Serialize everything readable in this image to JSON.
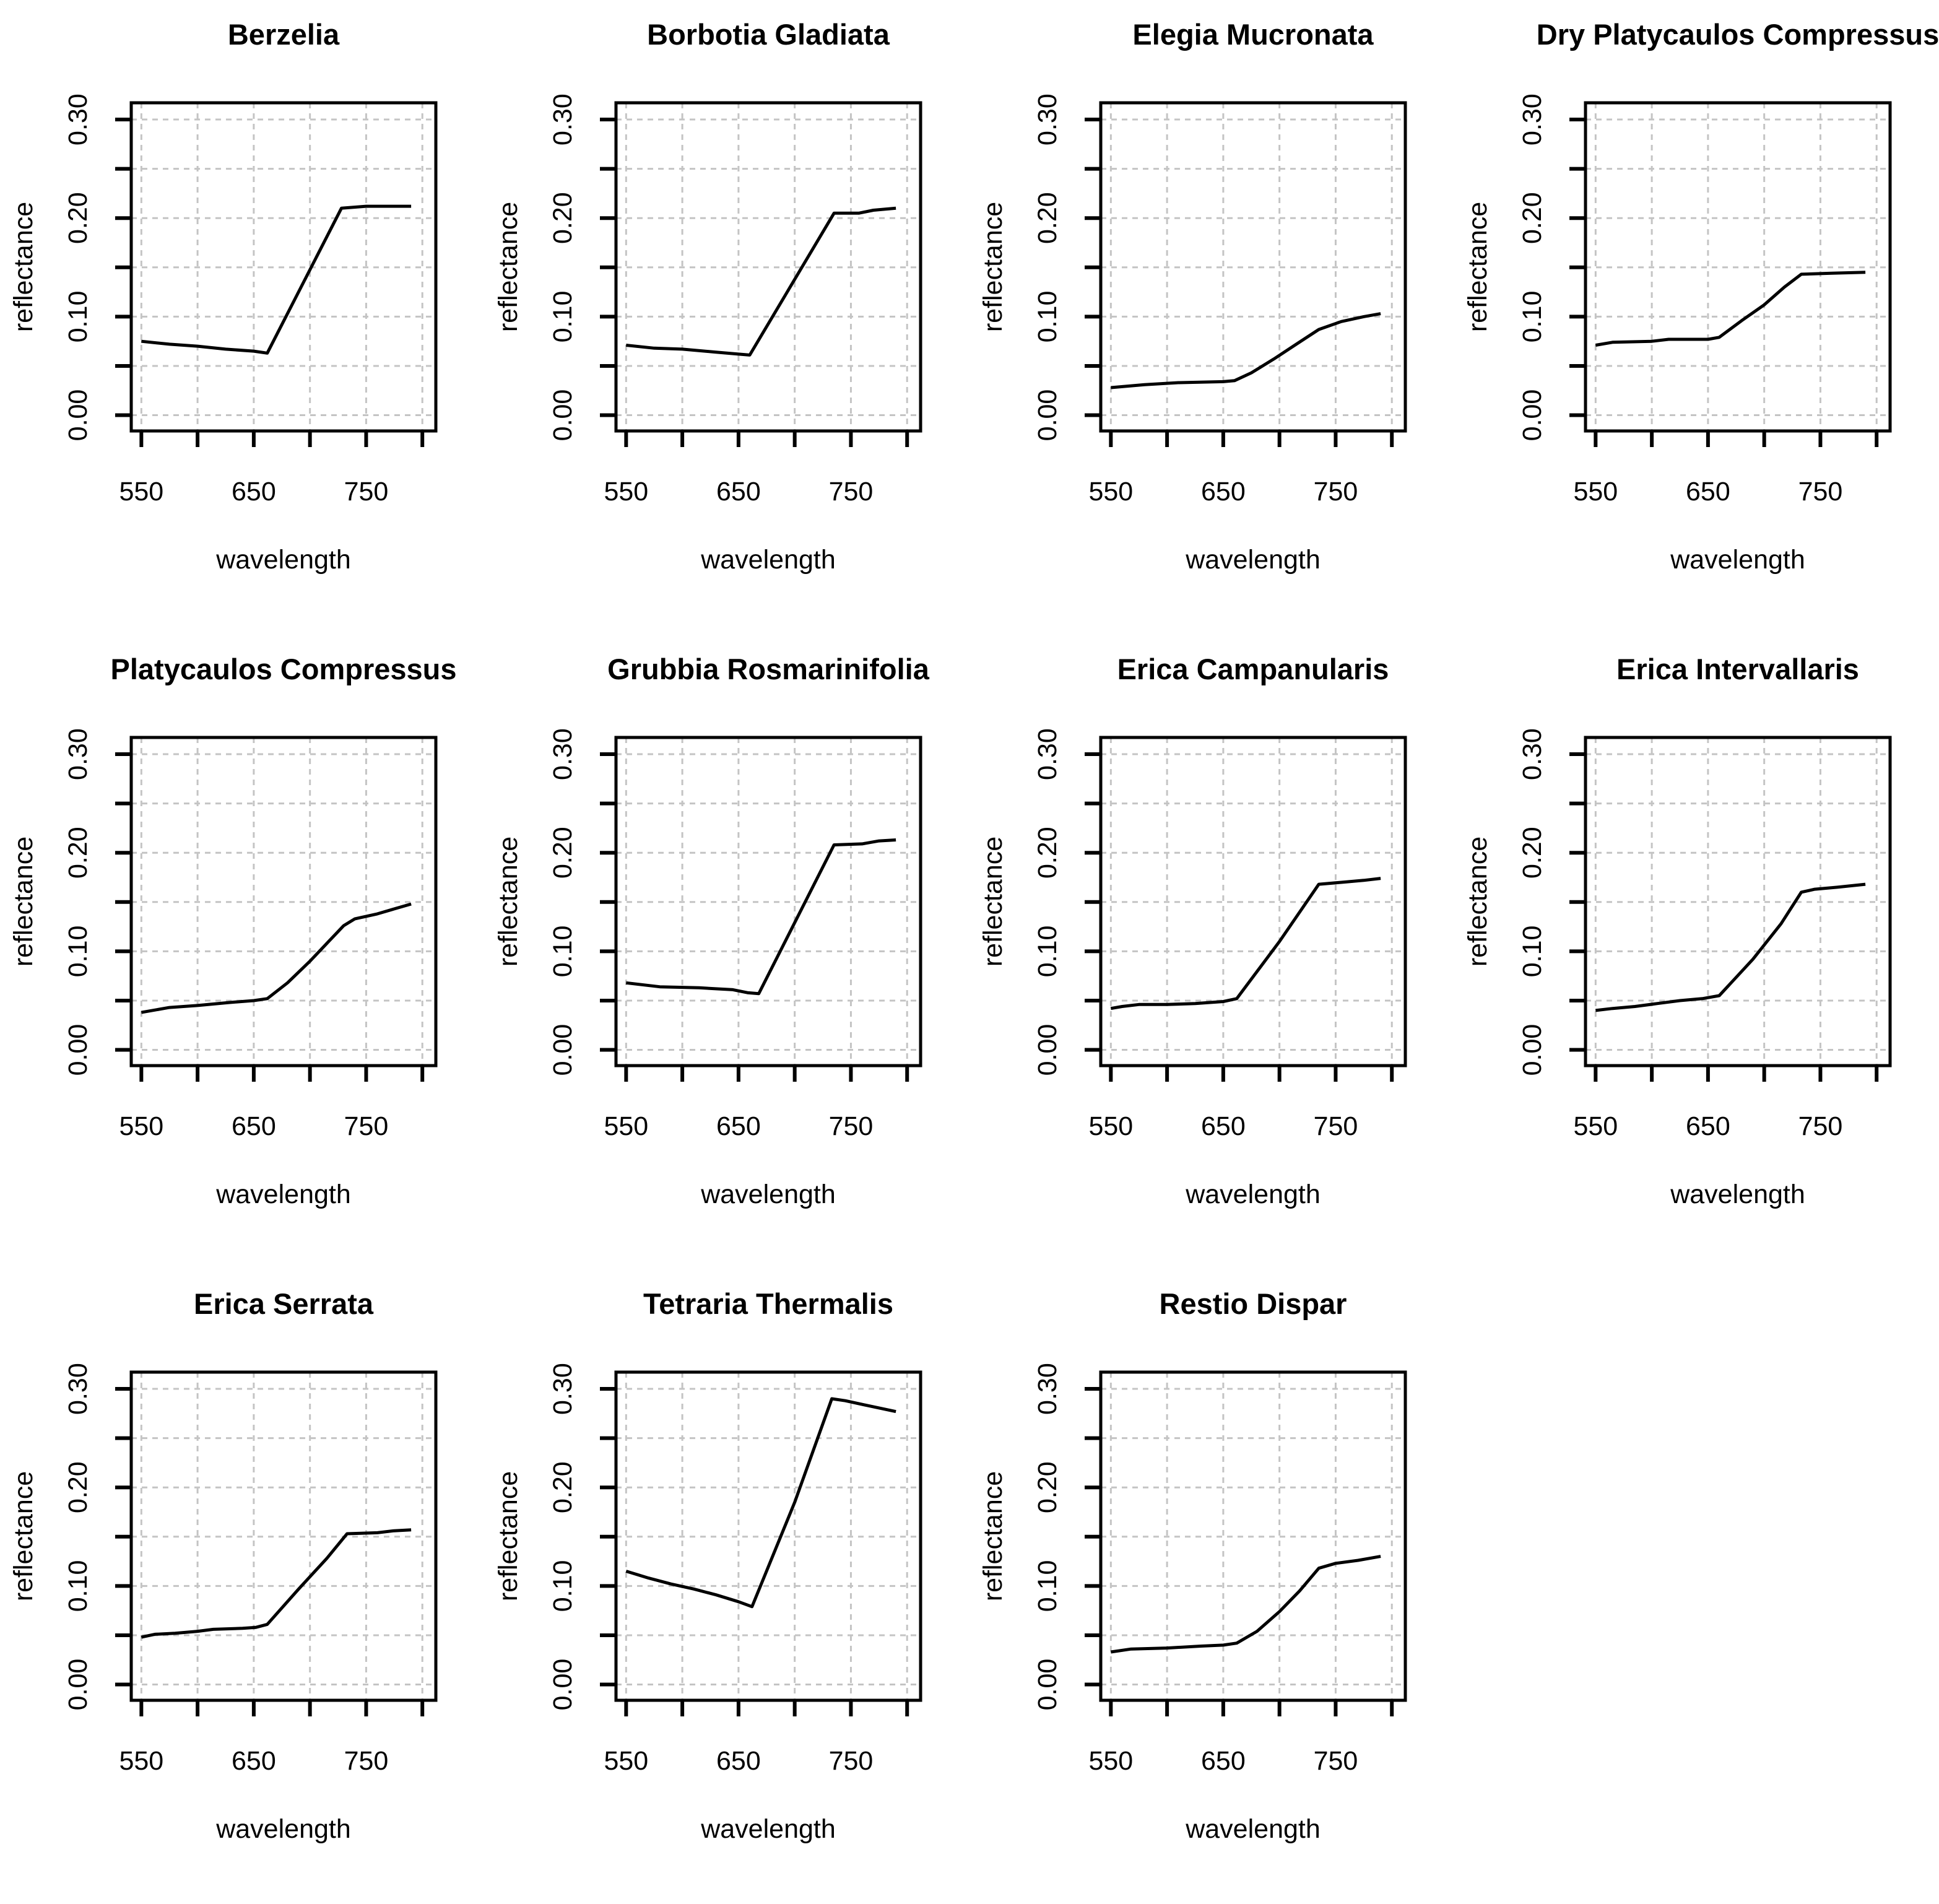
{
  "page": {
    "background": "#ffffff",
    "text_color": "#000000",
    "grid_color": "#c4c4c4",
    "line_color": "#000000"
  },
  "axes_shared": {
    "xlabel": "wavelength",
    "ylabel": "reflectance",
    "xlim": [
      541,
      812
    ],
    "ylim": [
      -0.016,
      0.317
    ],
    "x_ticks": [
      550,
      600,
      650,
      700,
      750,
      800
    ],
    "x_labeled_ticks": [
      550,
      650,
      750
    ],
    "y_ticks": [
      0.0,
      0.05,
      0.1,
      0.15,
      0.2,
      0.25,
      0.3
    ],
    "y_labeled_ticks": [
      0.0,
      0.1,
      0.2,
      0.3
    ],
    "grid": "dashed",
    "legend": "none"
  },
  "chart_data": [
    {
      "type": "line",
      "title": "Berzelia",
      "xlabel": "wavelength",
      "ylabel": "reflectance",
      "x": [
        550,
        575,
        600,
        625,
        650,
        662,
        728,
        750,
        790
      ],
      "y": [
        0.075,
        0.072,
        0.07,
        0.067,
        0.065,
        0.063,
        0.21,
        0.212,
        0.212
      ]
    },
    {
      "type": "line",
      "title": "Borbotia Gladiata",
      "xlabel": "wavelength",
      "ylabel": "reflectance",
      "x": [
        550,
        575,
        600,
        630,
        650,
        660,
        735,
        757,
        770,
        790
      ],
      "y": [
        0.071,
        0.068,
        0.067,
        0.064,
        0.062,
        0.061,
        0.205,
        0.205,
        0.208,
        0.21
      ]
    },
    {
      "type": "line",
      "title": "Elegia Mucronata",
      "xlabel": "wavelength",
      "ylabel": "reflectance",
      "x": [
        550,
        580,
        610,
        650,
        660,
        675,
        695,
        715,
        735,
        755,
        775,
        790
      ],
      "y": [
        0.028,
        0.031,
        0.033,
        0.034,
        0.035,
        0.043,
        0.057,
        0.072,
        0.087,
        0.095,
        0.1,
        0.103
      ]
    },
    {
      "type": "line",
      "title": "Dry Platycaulos Compressus",
      "xlabel": "wavelength",
      "ylabel": "reflectance",
      "x": [
        550,
        565,
        600,
        615,
        650,
        660,
        680,
        700,
        718,
        733,
        760,
        790
      ],
      "y": [
        0.071,
        0.074,
        0.075,
        0.077,
        0.077,
        0.079,
        0.096,
        0.112,
        0.13,
        0.143,
        0.144,
        0.145
      ]
    },
    {
      "type": "line",
      "title": "Platycaulos Compressus",
      "xlabel": "wavelength",
      "ylabel": "reflectance",
      "x": [
        550,
        575,
        600,
        628,
        650,
        662,
        680,
        700,
        715,
        730,
        740,
        760,
        775,
        790
      ],
      "y": [
        0.038,
        0.043,
        0.045,
        0.048,
        0.05,
        0.052,
        0.068,
        0.09,
        0.108,
        0.126,
        0.133,
        0.138,
        0.143,
        0.148
      ]
    },
    {
      "type": "line",
      "title": "Grubbia Rosmarinifolia",
      "xlabel": "wavelength",
      "ylabel": "reflectance",
      "x": [
        550,
        580,
        615,
        645,
        658,
        668,
        735,
        760,
        775,
        790
      ],
      "y": [
        0.068,
        0.064,
        0.063,
        0.061,
        0.058,
        0.057,
        0.208,
        0.209,
        0.212,
        0.213
      ]
    },
    {
      "type": "line",
      "title": "Erica Campanularis",
      "xlabel": "wavelength",
      "ylabel": "reflectance",
      "x": [
        550,
        560,
        575,
        600,
        625,
        650,
        662,
        700,
        735,
        755,
        775,
        790
      ],
      "y": [
        0.042,
        0.044,
        0.046,
        0.046,
        0.047,
        0.049,
        0.052,
        0.11,
        0.168,
        0.17,
        0.172,
        0.174
      ]
    },
    {
      "type": "line",
      "title": "Erica Intervallaris",
      "xlabel": "wavelength",
      "ylabel": "reflectance",
      "x": [
        550,
        565,
        585,
        605,
        625,
        645,
        660,
        690,
        715,
        733,
        745,
        765,
        790
      ],
      "y": [
        0.04,
        0.042,
        0.044,
        0.047,
        0.05,
        0.052,
        0.055,
        0.092,
        0.128,
        0.16,
        0.163,
        0.165,
        0.168
      ]
    },
    {
      "type": "line",
      "title": "Erica Serrata",
      "xlabel": "wavelength",
      "ylabel": "reflectance",
      "x": [
        550,
        562,
        580,
        600,
        614,
        640,
        652,
        662,
        690,
        715,
        733,
        760,
        775,
        790
      ],
      "y": [
        0.048,
        0.051,
        0.052,
        0.054,
        0.056,
        0.057,
        0.058,
        0.061,
        0.097,
        0.128,
        0.153,
        0.154,
        0.156,
        0.157
      ]
    },
    {
      "type": "line",
      "title": "Tetraria Thermalis",
      "xlabel": "wavelength",
      "ylabel": "reflectance",
      "x": [
        550,
        570,
        590,
        610,
        630,
        650,
        662,
        700,
        733,
        745,
        765,
        790
      ],
      "y": [
        0.115,
        0.108,
        0.102,
        0.097,
        0.091,
        0.084,
        0.079,
        0.185,
        0.29,
        0.288,
        0.283,
        0.277
      ]
    },
    {
      "type": "line",
      "title": "Restio Dispar",
      "xlabel": "wavelength",
      "ylabel": "reflectance",
      "x": [
        550,
        568,
        600,
        630,
        650,
        662,
        680,
        700,
        718,
        735,
        750,
        770,
        790
      ],
      "y": [
        0.033,
        0.036,
        0.037,
        0.039,
        0.04,
        0.042,
        0.054,
        0.074,
        0.095,
        0.118,
        0.123,
        0.126,
        0.13
      ]
    }
  ]
}
